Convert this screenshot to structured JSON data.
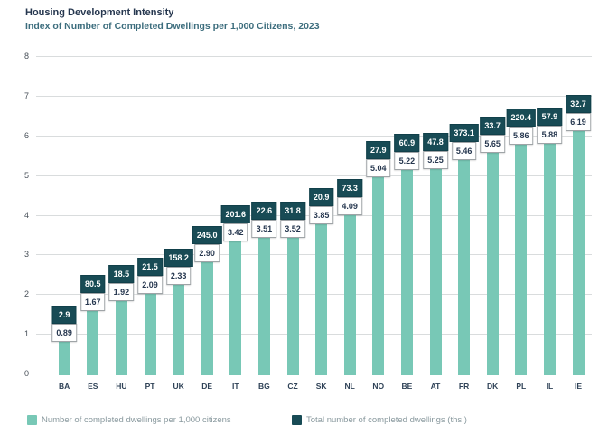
{
  "header": {
    "title": "Housing Development Intensity",
    "subtitle": "Index of Number of Completed Dwellings per 1,000 Citizens, 2023"
  },
  "colors": {
    "bar_teal": "#78c8b6",
    "callout_dark": "#184b55",
    "grid": "#d9dcdd",
    "title_navy": "#26374f",
    "subtitle_teal": "#3c6d7d",
    "legend_text": "#89999e"
  },
  "chart_data": {
    "type": "bar",
    "title": "Housing Development Intensity",
    "subtitle": "Index of Number of Completed Dwellings per 1,000 Citizens, 2023",
    "categories": [
      "BA",
      "ES",
      "HU",
      "PT",
      "UK",
      "DE",
      "IT",
      "BG",
      "CZ",
      "SK",
      "NL",
      "NO",
      "BE",
      "AT",
      "FR",
      "DK",
      "PL",
      "IL",
      "IE"
    ],
    "series": [
      {
        "name": "Number of completed dwellings per 1,000 citizens",
        "role": "bars",
        "color": "#78c8b6",
        "values": [
          0.89,
          1.67,
          1.92,
          2.09,
          2.33,
          2.9,
          3.42,
          3.51,
          3.52,
          3.85,
          4.09,
          5.04,
          5.22,
          5.25,
          5.46,
          5.65,
          5.86,
          5.88,
          6.19
        ],
        "labels": [
          "0.89",
          "1.67",
          "1.92",
          "2.09",
          "2.33",
          "2.90",
          "3.42",
          "3.51",
          "3.52",
          "3.85",
          "4.09",
          "5.04",
          "5.22",
          "5.25",
          "5.46",
          "5.65",
          "5.86",
          "5.88",
          "6.19"
        ]
      },
      {
        "name": "Total number of completed dwellings (ths.)",
        "role": "callout-labels",
        "color": "#184b55",
        "values": [
          2.9,
          80.5,
          18.5,
          21.5,
          158.2,
          245.0,
          201.6,
          22.6,
          31.8,
          20.9,
          73.3,
          27.9,
          60.9,
          47.8,
          373.1,
          33.7,
          220.4,
          57.9,
          32.7
        ],
        "labels": [
          "2.9",
          "80.5",
          "18.5",
          "21.5",
          "158.2",
          "245.0",
          "201.6",
          "22.6",
          "31.8",
          "20.9",
          "73.3",
          "27.9",
          "60.9",
          "47.8",
          "373.1",
          "33.7",
          "220.4",
          "57.9",
          "32.7"
        ]
      }
    ],
    "ylim": [
      0,
      8
    ],
    "yticks": [
      0,
      1,
      2,
      3,
      4,
      5,
      6,
      7,
      8
    ],
    "grid": "horizontal",
    "legend_position": "bottom"
  }
}
